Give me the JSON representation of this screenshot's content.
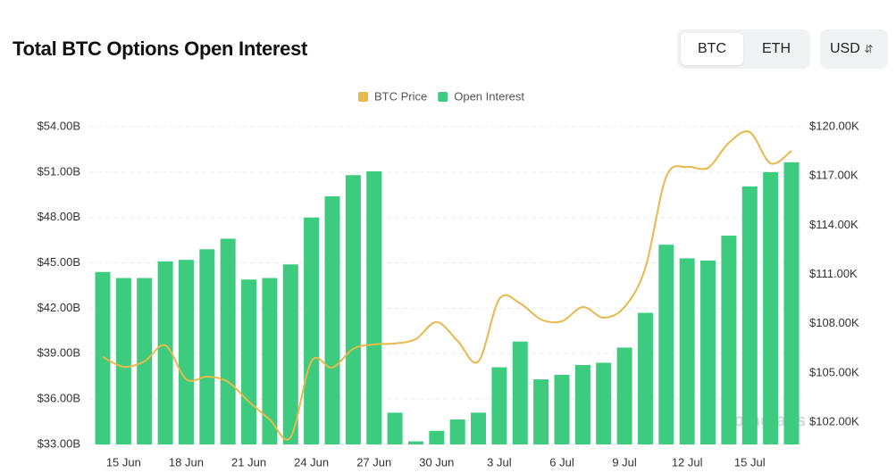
{
  "header": {
    "title": "Total BTC Options Open Interest",
    "toggle": [
      "BTC",
      "ETH"
    ],
    "currency": "USD"
  },
  "chart_data": {
    "type": "bar",
    "watermark": "coinglass",
    "categories": [
      null,
      "15 Jun",
      null,
      null,
      "18 Jun",
      null,
      null,
      "21 Jun",
      null,
      null,
      "24 Jun",
      null,
      null,
      "27 Jun",
      null,
      null,
      "30 Jun",
      null,
      null,
      "3 Jul",
      null,
      null,
      "6 Jul",
      null,
      null,
      "9 Jul",
      null,
      null,
      "12 Jul",
      null,
      null,
      "15 Jul",
      null,
      null
    ],
    "series": [
      {
        "name": "BTC Price",
        "type": "line",
        "axis": "y2",
        "color": "#e8b84b",
        "values": [
          105.98,
          105.38,
          105.71,
          106.68,
          104.62,
          104.78,
          104.46,
          103.26,
          102.17,
          101.09,
          105.71,
          105.33,
          106.47,
          106.74,
          106.8,
          107.07,
          108.1,
          106.96,
          105.71,
          109.51,
          109.24,
          108.26,
          108.15,
          109.02,
          108.37,
          109.02,
          111.41,
          116.96,
          117.55,
          117.5,
          119.02,
          119.67,
          117.77,
          118.53
        ]
      },
      {
        "name": "Open Interest",
        "type": "bar",
        "color": "#3ccb7f",
        "values": [
          44.4,
          44.0,
          44.0,
          45.1,
          45.2,
          45.9,
          46.6,
          43.9,
          44.0,
          44.9,
          48.0,
          49.4,
          50.8,
          51.05,
          35.1,
          33.2,
          33.9,
          34.65,
          35.1,
          38.1,
          39.8,
          37.3,
          37.6,
          38.25,
          38.4,
          39.4,
          41.7,
          46.2,
          45.3,
          45.15,
          46.8,
          50.05,
          51.0,
          51.65
        ]
      }
    ],
    "ylim": [
      33,
      54
    ],
    "yticks": [
      {
        "value": 33,
        "label": "$33.00B"
      },
      {
        "value": 36,
        "label": "$36.00B"
      },
      {
        "value": 39,
        "label": "$39.00B"
      },
      {
        "value": 42,
        "label": "$42.00B"
      },
      {
        "value": 45,
        "label": "$45.00B"
      },
      {
        "value": 48,
        "label": "$48.00B"
      },
      {
        "value": 51,
        "label": "$51.00B"
      },
      {
        "value": 54,
        "label": "$54.00B"
      }
    ],
    "y2lim": [
      100.65,
      120
    ],
    "y2ticks": [
      {
        "value": 102,
        "label": "$102.00K"
      },
      {
        "value": 105,
        "label": "$105.00K"
      },
      {
        "value": 108,
        "label": "$108.00K"
      },
      {
        "value": 111,
        "label": "$111.00K"
      },
      {
        "value": 114,
        "label": "$114.00K"
      },
      {
        "value": 117,
        "label": "$117.00K"
      },
      {
        "value": 120,
        "label": "$120.00K"
      }
    ],
    "grid": true,
    "legend": "top"
  }
}
